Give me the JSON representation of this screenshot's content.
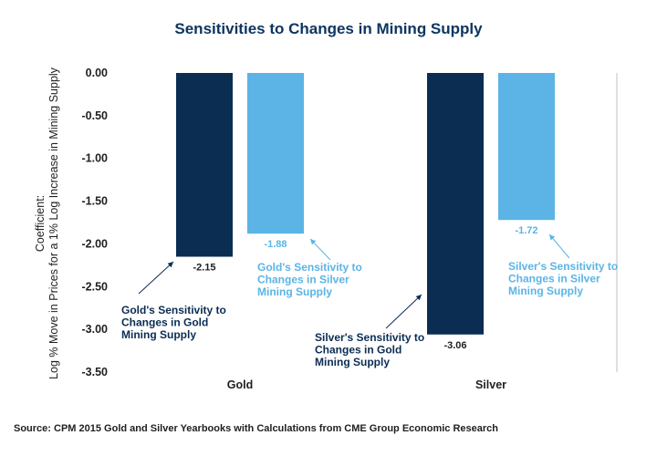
{
  "colors": {
    "gold_supply": "#0b2d52",
    "silver_supply": "#5bb4e5",
    "title": "#0d3560",
    "axis": "#bfbfbf"
  },
  "chart_data": {
    "type": "bar",
    "title": "Sensitivities to Changes in Mining Supply",
    "ylabel_line1": "Coefficient:",
    "ylabel_line2": "Log % Move in Prices for a 1% Log Increase in Mining Supply",
    "xlabel": "",
    "ylim": [
      -3.5,
      0
    ],
    "yticks": [
      "0.00",
      "-0.50",
      "-1.00",
      "-1.50",
      "-2.00",
      "-2.50",
      "-3.00",
      "-3.50"
    ],
    "ytick_values": [
      0,
      -0.5,
      -1,
      -1.5,
      -2,
      -2.5,
      -3,
      -3.5
    ],
    "grid": false,
    "categories": [
      "Gold",
      "Silver"
    ],
    "series": [
      {
        "values": [
          -2.15,
          -3.06
        ],
        "labels": [
          "-2.15",
          "-3.06"
        ]
      },
      {
        "values": [
          -1.88,
          -1.72
        ],
        "labels": [
          "-1.88",
          "-1.72"
        ]
      }
    ],
    "annotations": [
      {
        "lines": [
          "Gold's Sensitivity to",
          "Changes in Gold",
          "Mining Supply"
        ]
      },
      {
        "lines": [
          "Gold's Sensitivity to",
          "Changes in Silver",
          "Mining Supply"
        ]
      },
      {
        "lines": [
          "Silver's Sensitivity to",
          "Changes in Gold",
          "Mining Supply"
        ]
      },
      {
        "lines": [
          "Silver's Sensitivity to",
          "Changes in Silver",
          "Mining Supply"
        ]
      }
    ],
    "source": "Source: CPM 2015 Gold and Silver Yearbooks with Calculations from CME Group Economic Research"
  }
}
